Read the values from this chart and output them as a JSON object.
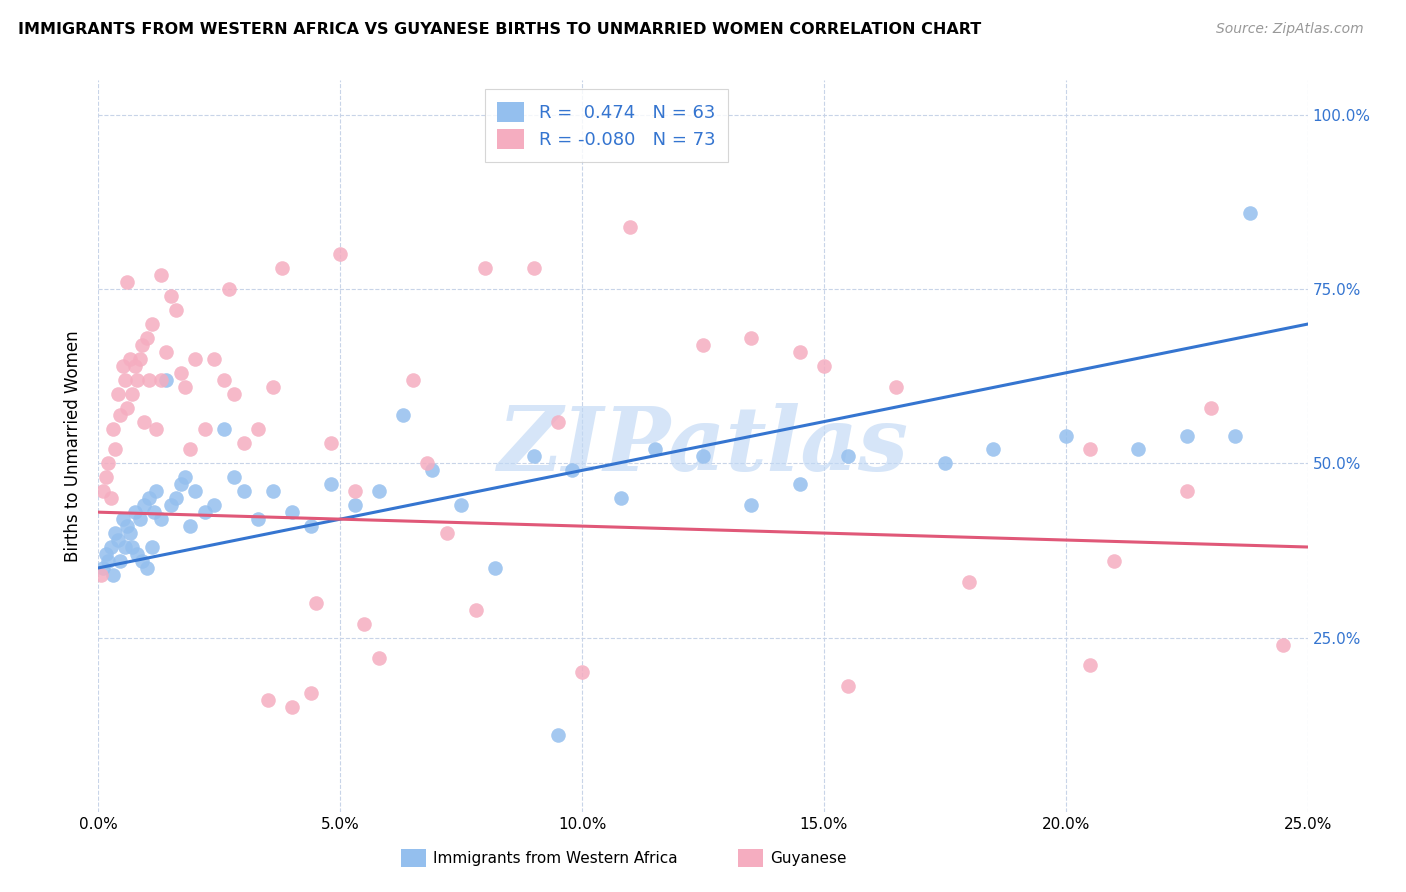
{
  "title": "IMMIGRANTS FROM WESTERN AFRICA VS GUYANESE BIRTHS TO UNMARRIED WOMEN CORRELATION CHART",
  "source": "Source: ZipAtlas.com",
  "ylabel": "Births to Unmarried Women",
  "x_tick_vals": [
    0.0,
    5.0,
    10.0,
    15.0,
    20.0,
    25.0
  ],
  "y_tick_vals_right": [
    25.0,
    50.0,
    75.0,
    100.0
  ],
  "xlim": [
    0.0,
    25.0
  ],
  "ylim": [
    0.0,
    105.0
  ],
  "blue_R": 0.474,
  "blue_N": 63,
  "pink_R": -0.08,
  "pink_N": 73,
  "blue_color": "#94bfee",
  "pink_color": "#f5adc0",
  "blue_line_color": "#3575d0",
  "pink_line_color": "#e05878",
  "watermark": "ZIPatlas",
  "watermark_blue": "#c0d8f5",
  "blue_scatter_x": [
    0.1,
    0.15,
    0.2,
    0.25,
    0.3,
    0.35,
    0.4,
    0.45,
    0.5,
    0.55,
    0.6,
    0.65,
    0.7,
    0.75,
    0.8,
    0.85,
    0.9,
    0.95,
    1.0,
    1.05,
    1.1,
    1.15,
    1.2,
    1.3,
    1.4,
    1.5,
    1.6,
    1.7,
    1.8,
    1.9,
    2.0,
    2.2,
    2.4,
    2.6,
    2.8,
    3.0,
    3.3,
    3.6,
    4.0,
    4.4,
    4.8,
    5.3,
    5.8,
    6.3,
    6.9,
    7.5,
    8.2,
    9.0,
    9.8,
    10.8,
    11.5,
    12.5,
    13.5,
    14.5,
    15.5,
    17.5,
    18.5,
    20.0,
    21.5,
    22.5,
    23.5,
    9.5,
    23.8
  ],
  "blue_scatter_y": [
    35,
    37,
    36,
    38,
    34,
    40,
    39,
    36,
    42,
    38,
    41,
    40,
    38,
    43,
    37,
    42,
    36,
    44,
    35,
    45,
    38,
    43,
    46,
    42,
    62,
    44,
    45,
    47,
    48,
    41,
    46,
    43,
    44,
    55,
    48,
    46,
    42,
    46,
    43,
    41,
    47,
    44,
    46,
    57,
    49,
    44,
    35,
    51,
    49,
    45,
    52,
    51,
    44,
    47,
    51,
    50,
    52,
    54,
    52,
    54,
    54,
    11,
    86
  ],
  "pink_scatter_x": [
    0.05,
    0.1,
    0.15,
    0.2,
    0.25,
    0.3,
    0.35,
    0.4,
    0.45,
    0.5,
    0.55,
    0.6,
    0.65,
    0.7,
    0.75,
    0.8,
    0.85,
    0.9,
    0.95,
    1.0,
    1.05,
    1.1,
    1.2,
    1.3,
    1.4,
    1.5,
    1.6,
    1.7,
    1.8,
    1.9,
    2.0,
    2.2,
    2.4,
    2.6,
    2.8,
    3.0,
    3.3,
    3.6,
    4.0,
    4.4,
    4.8,
    5.3,
    5.8,
    6.5,
    7.2,
    8.0,
    9.0,
    10.0,
    11.0,
    12.5,
    13.5,
    15.0,
    16.5,
    18.0,
    20.5,
    22.5,
    3.5,
    4.5,
    5.5,
    7.8,
    15.5,
    21.0,
    14.5,
    9.5,
    0.6,
    1.3,
    2.7,
    3.8,
    5.0,
    6.8,
    20.5,
    23.0,
    24.5
  ],
  "pink_scatter_y": [
    34,
    46,
    48,
    50,
    45,
    55,
    52,
    60,
    57,
    64,
    62,
    58,
    65,
    60,
    64,
    62,
    65,
    67,
    56,
    68,
    62,
    70,
    55,
    62,
    66,
    74,
    72,
    63,
    61,
    52,
    65,
    55,
    65,
    62,
    60,
    53,
    55,
    61,
    15,
    17,
    53,
    46,
    22,
    62,
    40,
    78,
    78,
    20,
    84,
    67,
    68,
    64,
    61,
    33,
    21,
    46,
    16,
    30,
    27,
    29,
    18,
    36,
    66,
    56,
    76,
    77,
    75,
    78,
    80,
    50,
    52,
    58,
    24
  ]
}
